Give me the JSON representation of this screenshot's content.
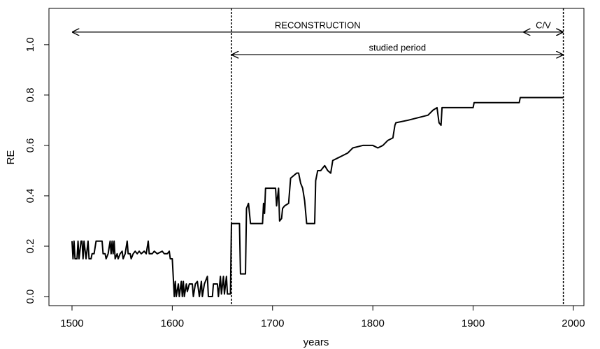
{
  "chart_data": {
    "type": "line",
    "xlabel": "years",
    "ylabel": "RE",
    "xlim": [
      1477,
      2010.5
    ],
    "ylim": [
      -0.036,
      1.144
    ],
    "xticks": [
      1500,
      1600,
      1700,
      1800,
      1900,
      2000
    ],
    "yticks": [
      {
        "value": 0,
        "label": "0.0"
      },
      {
        "value": 0.2,
        "label": "0.2"
      },
      {
        "value": 0.4,
        "label": "0.4"
      },
      {
        "value": 0.6,
        "label": "0.6"
      },
      {
        "value": 0.8,
        "label": "0.8"
      },
      {
        "value": 1,
        "label": "1.0"
      }
    ],
    "color": "#000000",
    "vlines": [
      1659,
      1990
    ],
    "arrows": [
      {
        "label": "RECONSTRUCTION",
        "x": [
          1500,
          1990
        ],
        "y": 1.05
      },
      {
        "label": "C/V",
        "x": [
          1950,
          1990
        ],
        "y": 1.05
      },
      {
        "label": "studied period",
        "x": [
          1659,
          1990
        ],
        "y": 0.96
      }
    ],
    "x": [
      1500,
      1501,
      1502,
      1503,
      1505,
      1506,
      1507,
      1509,
      1510,
      1511,
      1512,
      1514,
      1516,
      1517,
      1519,
      1520,
      1522,
      1524,
      1530,
      1531,
      1533,
      1534,
      1536,
      1538,
      1539,
      1540,
      1541,
      1542,
      1543,
      1545,
      1546,
      1548,
      1550,
      1551,
      1553,
      1555,
      1556,
      1558,
      1559,
      1561,
      1563,
      1565,
      1567,
      1569,
      1572,
      1574,
      1576,
      1577,
      1580,
      1582,
      1585,
      1590,
      1592,
      1595,
      1597,
      1598,
      1600,
      1602,
      1603,
      1604,
      1606,
      1607,
      1609,
      1610,
      1611,
      1612,
      1614,
      1615,
      1617,
      1620,
      1621,
      1623,
      1625,
      1627,
      1629,
      1630,
      1632,
      1635,
      1636,
      1640,
      1641,
      1645,
      1646,
      1648,
      1649,
      1651,
      1652,
      1654,
      1655,
      1658,
      1659,
      1667,
      1668,
      1673,
      1674,
      1676,
      1678,
      1690,
      1691,
      1692,
      1693,
      1703,
      1704,
      1706,
      1707,
      1709,
      1710,
      1712,
      1716,
      1718,
      1721,
      1724,
      1726,
      1728,
      1730,
      1732,
      1734,
      1742,
      1743,
      1745,
      1748,
      1750,
      1752,
      1755,
      1758,
      1760,
      1765,
      1770,
      1775,
      1780,
      1790,
      1800,
      1805,
      1810,
      1815,
      1820,
      1822,
      1823,
      1835,
      1845,
      1855,
      1860,
      1864,
      1866,
      1868,
      1869,
      1900,
      1901,
      1946,
      1947,
      1990
    ],
    "values": [
      0.22,
      0.15,
      0.22,
      0.15,
      0.15,
      0.22,
      0.15,
      0.22,
      0.22,
      0.15,
      0.22,
      0.15,
      0.22,
      0.15,
      0.15,
      0.17,
      0.17,
      0.22,
      0.22,
      0.17,
      0.17,
      0.15,
      0.17,
      0.22,
      0.17,
      0.22,
      0.17,
      0.22,
      0.15,
      0.17,
      0.15,
      0.17,
      0.18,
      0.15,
      0.17,
      0.22,
      0.17,
      0.17,
      0.15,
      0.17,
      0.18,
      0.17,
      0.18,
      0.17,
      0.18,
      0.17,
      0.22,
      0.17,
      0.17,
      0.18,
      0.17,
      0.18,
      0.17,
      0.17,
      0.18,
      0.15,
      0.15,
      0.0,
      0.06,
      0.0,
      0.05,
      0.0,
      0.06,
      0.0,
      0.06,
      0.0,
      0.05,
      0.02,
      0.05,
      0.05,
      0.0,
      0.05,
      0.06,
      0.0,
      0.06,
      0.0,
      0.05,
      0.08,
      0.0,
      0.0,
      0.05,
      0.05,
      0.0,
      0.08,
      0.01,
      0.08,
      0.01,
      0.08,
      0.01,
      0.01,
      0.29,
      0.29,
      0.09,
      0.09,
      0.35,
      0.37,
      0.29,
      0.29,
      0.37,
      0.33,
      0.43,
      0.43,
      0.36,
      0.43,
      0.3,
      0.31,
      0.35,
      0.36,
      0.37,
      0.47,
      0.48,
      0.49,
      0.49,
      0.45,
      0.43,
      0.38,
      0.29,
      0.29,
      0.46,
      0.5,
      0.5,
      0.51,
      0.52,
      0.5,
      0.49,
      0.54,
      0.55,
      0.56,
      0.57,
      0.59,
      0.6,
      0.6,
      0.59,
      0.6,
      0.62,
      0.63,
      0.68,
      0.69,
      0.7,
      0.71,
      0.72,
      0.74,
      0.75,
      0.69,
      0.68,
      0.75,
      0.75,
      0.77,
      0.77,
      0.79,
      0.79
    ]
  }
}
